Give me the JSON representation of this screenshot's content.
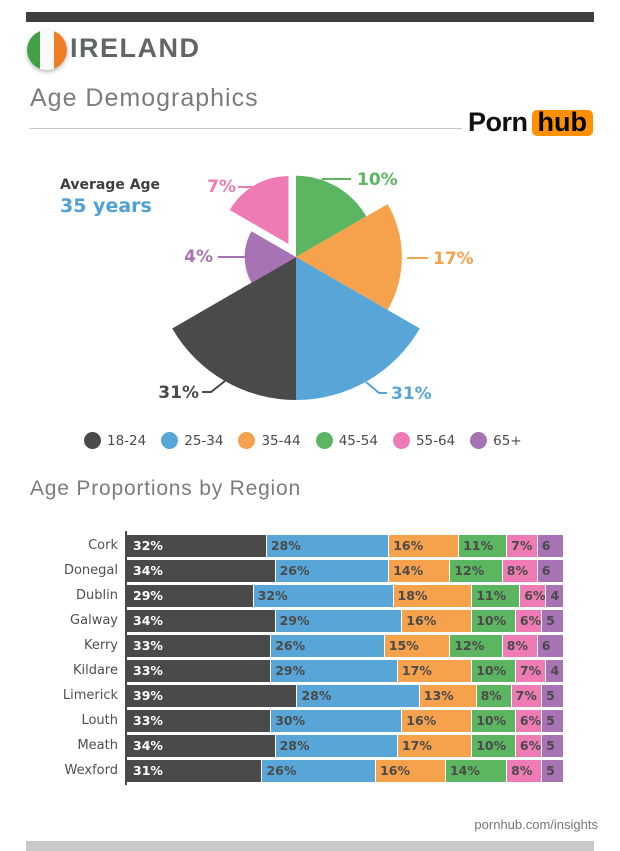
{
  "header": {
    "country": "IRELAND",
    "title": "Age Demographics",
    "brand": {
      "porn": "Porn",
      "hub": "hub"
    },
    "accent_bar_color": "#3E3E3E",
    "flag_colors": [
      "#43A047",
      "#FAFAFA",
      "#F07E27"
    ],
    "hub_orange": "#FF9000"
  },
  "pie": {
    "avg_label": "Average Age",
    "avg_value": "35 years",
    "avg_value_color": "#4DA0D8",
    "slices": [
      {
        "group": "45-54",
        "value": 10,
        "label": "10%",
        "color": "#5CB560",
        "start": 0,
        "explode": 0
      },
      {
        "group": "35-44",
        "value": 17,
        "label": "17%",
        "color": "#F6A14B",
        "start": 60,
        "explode": 0
      },
      {
        "group": "25-34",
        "value": 31,
        "label": "31%",
        "color": "#58A5D8",
        "start": 120,
        "explode": 0
      },
      {
        "group": "18-24",
        "value": 31,
        "label": "31%",
        "color": "#4A4A4A",
        "start": 180,
        "explode": 0
      },
      {
        "group": "65+",
        "value": 4,
        "label": "4%",
        "color": "#A873B5",
        "start": 240,
        "explode": 0
      },
      {
        "group": "55-64",
        "value": 7,
        "label": "7%",
        "color": "#EE7BB3",
        "start": 300,
        "explode": 15
      }
    ]
  },
  "legend": {
    "items": [
      {
        "label": "18-24",
        "color": "#4A4A4A"
      },
      {
        "label": "25-34",
        "color": "#58A5D8"
      },
      {
        "label": "35-44",
        "color": "#F6A14B"
      },
      {
        "label": "45-54",
        "color": "#5CB560"
      },
      {
        "label": "55-64",
        "color": "#EE7BB3"
      },
      {
        "label": "65+",
        "color": "#A873B5"
      }
    ]
  },
  "regions": {
    "title": "Age Proportions by Region",
    "age_groups": [
      "18-24",
      "25-34",
      "35-44",
      "45-54",
      "55-64",
      "65+"
    ],
    "rows": [
      {
        "region": "Cork",
        "values": [
          32,
          28,
          16,
          11,
          7,
          6
        ],
        "labels": [
          "32%",
          "28%",
          "16%",
          "11%",
          "7%",
          "6"
        ]
      },
      {
        "region": "Donegal",
        "values": [
          34,
          26,
          14,
          12,
          8,
          6
        ],
        "labels": [
          "34%",
          "26%",
          "14%",
          "12%",
          "8%",
          "6"
        ]
      },
      {
        "region": "Dublin",
        "values": [
          29,
          32,
          18,
          11,
          6,
          4
        ],
        "labels": [
          "29%",
          "32%",
          "18%",
          "11%",
          "6%",
          "4"
        ]
      },
      {
        "region": "Galway",
        "values": [
          34,
          29,
          16,
          10,
          6,
          5
        ],
        "labels": [
          "34%",
          "29%",
          "16%",
          "10%",
          "6%",
          "5"
        ]
      },
      {
        "region": "Kerry",
        "values": [
          33,
          26,
          15,
          12,
          8,
          6
        ],
        "labels": [
          "33%",
          "26%",
          "15%",
          "12%",
          "8%",
          "6"
        ]
      },
      {
        "region": "Kildare",
        "values": [
          33,
          29,
          17,
          10,
          7,
          4
        ],
        "labels": [
          "33%",
          "29%",
          "17%",
          "10%",
          "7%",
          "4"
        ]
      },
      {
        "region": "Limerick",
        "values": [
          39,
          28,
          13,
          8,
          7,
          5
        ],
        "labels": [
          "39%",
          "28%",
          "13%",
          "8%",
          "7%",
          "5"
        ]
      },
      {
        "region": "Louth",
        "values": [
          33,
          30,
          16,
          10,
          6,
          5
        ],
        "labels": [
          "33%",
          "30%",
          "16%",
          "10%",
          "6%",
          "5"
        ]
      },
      {
        "region": "Meath",
        "values": [
          34,
          28,
          17,
          10,
          6,
          5
        ],
        "labels": [
          "34%",
          "28%",
          "17%",
          "10%",
          "6%",
          "5"
        ]
      },
      {
        "region": "Wexford",
        "values": [
          31,
          26,
          16,
          14,
          8,
          5
        ],
        "labels": [
          "31%",
          "26%",
          "16%",
          "14%",
          "8%",
          "5"
        ]
      }
    ]
  },
  "footer": {
    "url": "pornhub.com/insights"
  },
  "chart_data": [
    {
      "type": "pie",
      "subtype": "rose (equal 60-degree slices, radius proportional to sqrt of value, 55-64 slice exploded)",
      "title": "Age Demographics",
      "annotation": "Average Age 35 years",
      "categories": [
        "18-24",
        "25-34",
        "35-44",
        "45-54",
        "55-64",
        "65+"
      ],
      "values": [
        31,
        31,
        17,
        10,
        7,
        4
      ],
      "colors": [
        "#4A4A4A",
        "#58A5D8",
        "#F6A14B",
        "#5CB560",
        "#EE7BB3",
        "#A873B5"
      ],
      "legend_position": "bottom"
    },
    {
      "type": "bar",
      "subtype": "stacked-horizontal",
      "title": "Age Proportions by Region",
      "categories": [
        "Cork",
        "Donegal",
        "Dublin",
        "Galway",
        "Kerry",
        "Kildare",
        "Limerick",
        "Louth",
        "Meath",
        "Wexford"
      ],
      "series": [
        {
          "name": "18-24",
          "values": [
            32,
            34,
            29,
            34,
            33,
            33,
            39,
            33,
            34,
            31
          ]
        },
        {
          "name": "25-34",
          "values": [
            28,
            26,
            32,
            29,
            26,
            29,
            28,
            30,
            28,
            26
          ]
        },
        {
          "name": "35-44",
          "values": [
            16,
            14,
            18,
            16,
            15,
            17,
            13,
            16,
            17,
            16
          ]
        },
        {
          "name": "45-54",
          "values": [
            11,
            12,
            11,
            10,
            12,
            10,
            8,
            10,
            10,
            14
          ]
        },
        {
          "name": "55-64",
          "values": [
            7,
            8,
            6,
            6,
            8,
            7,
            7,
            6,
            6,
            8
          ]
        },
        {
          "name": "65+",
          "values": [
            6,
            6,
            4,
            5,
            6,
            4,
            5,
            5,
            5,
            5
          ]
        }
      ],
      "xlim": [
        0,
        100
      ],
      "xlabel": "",
      "ylabel": "",
      "grid": false,
      "value_labels": "inside-left of each segment, percent sign omitted on last segment"
    }
  ]
}
